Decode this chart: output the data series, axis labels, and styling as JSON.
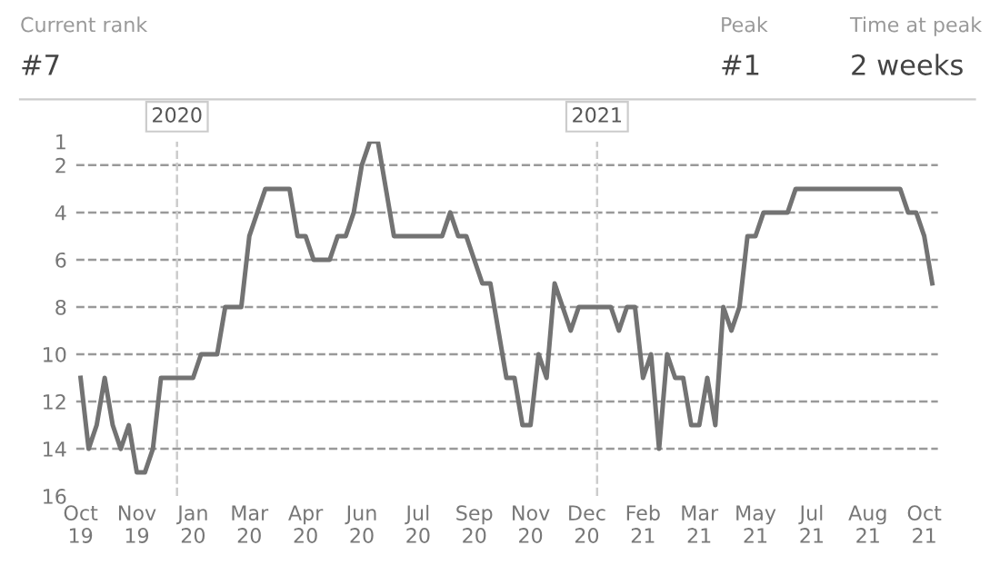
{
  "chart_data": {
    "type": "line",
    "annotations": [
      "Current rank",
      "#7",
      "Peak",
      "#1",
      "Time at peak",
      "2 weeks"
    ],
    "x": [
      "2019-10-09",
      "2019-10-16",
      "2019-10-23",
      "2019-10-30",
      "2019-11-06",
      "2019-11-13",
      "2019-11-20",
      "2019-11-27",
      "2019-12-04",
      "2019-12-11",
      "2019-12-18",
      "2019-12-25",
      "2020-01-01",
      "2020-01-08",
      "2020-01-15",
      "2020-01-22",
      "2020-01-29",
      "2020-02-05",
      "2020-02-12",
      "2020-02-19",
      "2020-02-26",
      "2020-03-04",
      "2020-03-11",
      "2020-03-18",
      "2020-03-25",
      "2020-04-01",
      "2020-04-08",
      "2020-04-15",
      "2020-04-22",
      "2020-04-29",
      "2020-05-06",
      "2020-05-13",
      "2020-05-20",
      "2020-05-27",
      "2020-06-03",
      "2020-06-10",
      "2020-06-17",
      "2020-06-24",
      "2020-07-01",
      "2020-07-08",
      "2020-07-15",
      "2020-07-22",
      "2020-07-29",
      "2020-08-05",
      "2020-08-12",
      "2020-08-19",
      "2020-08-26",
      "2020-09-02",
      "2020-09-09",
      "2020-09-16",
      "2020-09-23",
      "2020-09-30",
      "2020-10-07",
      "2020-10-14",
      "2020-10-21",
      "2020-10-28",
      "2020-11-04",
      "2020-11-11",
      "2020-11-18",
      "2020-11-25",
      "2020-12-02",
      "2020-12-09",
      "2020-12-16",
      "2020-12-23",
      "2020-12-30",
      "2021-01-06",
      "2021-01-13",
      "2021-01-20",
      "2021-01-27",
      "2021-02-03",
      "2021-02-10",
      "2021-02-17",
      "2021-02-24",
      "2021-03-03",
      "2021-03-10",
      "2021-03-17",
      "2021-03-24",
      "2021-03-31",
      "2021-04-07",
      "2021-04-14",
      "2021-04-21",
      "2021-04-28",
      "2021-05-05",
      "2021-05-12",
      "2021-05-19",
      "2021-05-26",
      "2021-06-02",
      "2021-06-09",
      "2021-06-16",
      "2021-06-23",
      "2021-06-30",
      "2021-07-07",
      "2021-07-14",
      "2021-07-21",
      "2021-07-28",
      "2021-08-04",
      "2021-08-11",
      "2021-08-18",
      "2021-08-25",
      "2021-09-01",
      "2021-09-08",
      "2021-09-15",
      "2021-09-22",
      "2021-09-29",
      "2021-10-06",
      "2021-10-13",
      "2021-10-20"
    ],
    "series": [
      {
        "color": "#737373",
        "values": [
          11,
          14,
          13,
          11,
          13,
          14,
          13,
          15,
          15,
          14,
          11,
          11,
          11,
          11,
          11,
          10,
          10,
          10,
          8,
          8,
          8,
          5,
          4,
          3,
          3,
          3,
          3,
          5,
          5,
          6,
          6,
          6,
          5,
          5,
          4,
          2,
          1,
          1,
          3,
          5,
          5,
          5,
          5,
          5,
          5,
          5,
          4,
          5,
          5,
          6,
          7,
          7,
          9,
          11,
          11,
          13,
          13,
          10,
          11,
          7,
          8,
          9,
          8,
          8,
          8,
          8,
          8,
          9,
          8,
          8,
          11,
          10,
          14,
          10,
          11,
          11,
          13,
          13,
          11,
          13,
          8,
          9,
          8,
          5,
          5,
          4,
          4,
          4,
          4,
          3,
          3,
          3,
          3,
          3,
          3,
          3,
          3,
          3,
          3,
          3,
          3,
          3,
          3,
          4,
          4,
          5,
          7
        ]
      }
    ],
    "xlim": [
      "2019-10-05",
      "2021-10-25"
    ],
    "xticks": [
      {
        "value": "2019-10-09",
        "label": "Oct\n19"
      },
      {
        "value": "2019-11-27",
        "label": "Nov\n19"
      },
      {
        "value": "2020-01-15",
        "label": "Jan\n20"
      },
      {
        "value": "2020-03-04",
        "label": "Mar\n20"
      },
      {
        "value": "2020-04-22",
        "label": "Apr\n20"
      },
      {
        "value": "2020-06-10",
        "label": "Jun\n20"
      },
      {
        "value": "2020-07-29",
        "label": "Jul\n20"
      },
      {
        "value": "2020-09-16",
        "label": "Sep\n20"
      },
      {
        "value": "2020-11-04",
        "label": "Nov\n20"
      },
      {
        "value": "2020-12-23",
        "label": "Dec\n20"
      },
      {
        "value": "2021-02-10",
        "label": "Feb\n21"
      },
      {
        "value": "2021-03-31",
        "label": "Mar\n21"
      },
      {
        "value": "2021-05-19",
        "label": "May\n21"
      },
      {
        "value": "2021-07-07",
        "label": "Jul\n21"
      },
      {
        "value": "2021-08-25",
        "label": "Aug\n21"
      },
      {
        "value": "2021-10-13",
        "label": "Oct\n21"
      }
    ],
    "ylim": [
      16,
      1
    ],
    "yticks": [
      1,
      2,
      4,
      6,
      8,
      10,
      12,
      14,
      16
    ],
    "grid": "y",
    "line_style": "solid",
    "marker": "none",
    "legend": false,
    "ref_lines": [
      {
        "axis": "x",
        "value": "2020-01-01",
        "label": "2020",
        "color": "#cccccc",
        "line_style": "dashed"
      },
      {
        "axis": "x",
        "value": "2021-01-01",
        "label": "2021",
        "color": "#cccccc",
        "line_style": "dashed"
      }
    ]
  }
}
